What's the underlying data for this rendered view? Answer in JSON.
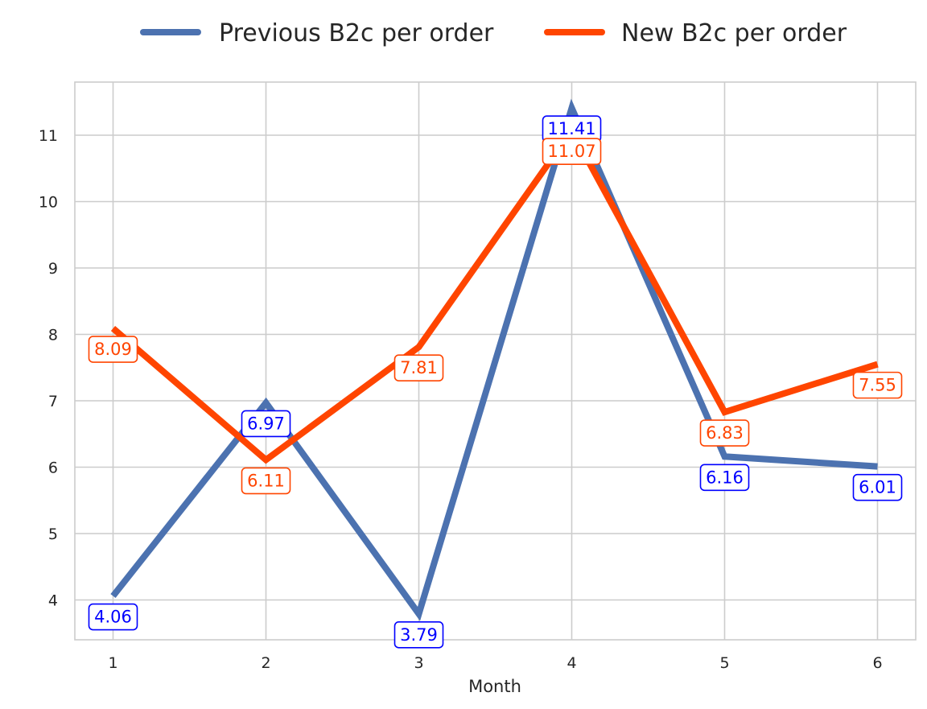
{
  "chart_data": {
    "type": "line",
    "x": [
      1,
      2,
      3,
      4,
      5,
      6
    ],
    "xlabel": "Month",
    "ylabel": "",
    "xlim": [
      0.75,
      6.25
    ],
    "ylim": [
      3.4,
      11.8
    ],
    "xticks": [
      "1",
      "2",
      "3",
      "4",
      "5",
      "6"
    ],
    "yticks": [
      "4",
      "5",
      "6",
      "7",
      "8",
      "9",
      "10",
      "11"
    ],
    "grid": true,
    "legend_position": "top-center",
    "series": [
      {
        "name": "Previous B2c per order",
        "color": "#4c72b0",
        "label_color": "#0000ff",
        "values": [
          4.06,
          6.97,
          3.79,
          11.41,
          6.16,
          6.01
        ],
        "labels": [
          "4.06",
          "6.97",
          "3.79",
          "11.41",
          "6.16",
          "6.01"
        ]
      },
      {
        "name": "New B2c per order",
        "color": "#ff4500",
        "label_color": "#ff4500",
        "values": [
          8.09,
          6.11,
          7.81,
          11.07,
          6.83,
          7.55
        ],
        "labels": [
          "8.09",
          "6.11",
          "7.81",
          "11.07",
          "6.83",
          "7.55"
        ]
      }
    ]
  }
}
